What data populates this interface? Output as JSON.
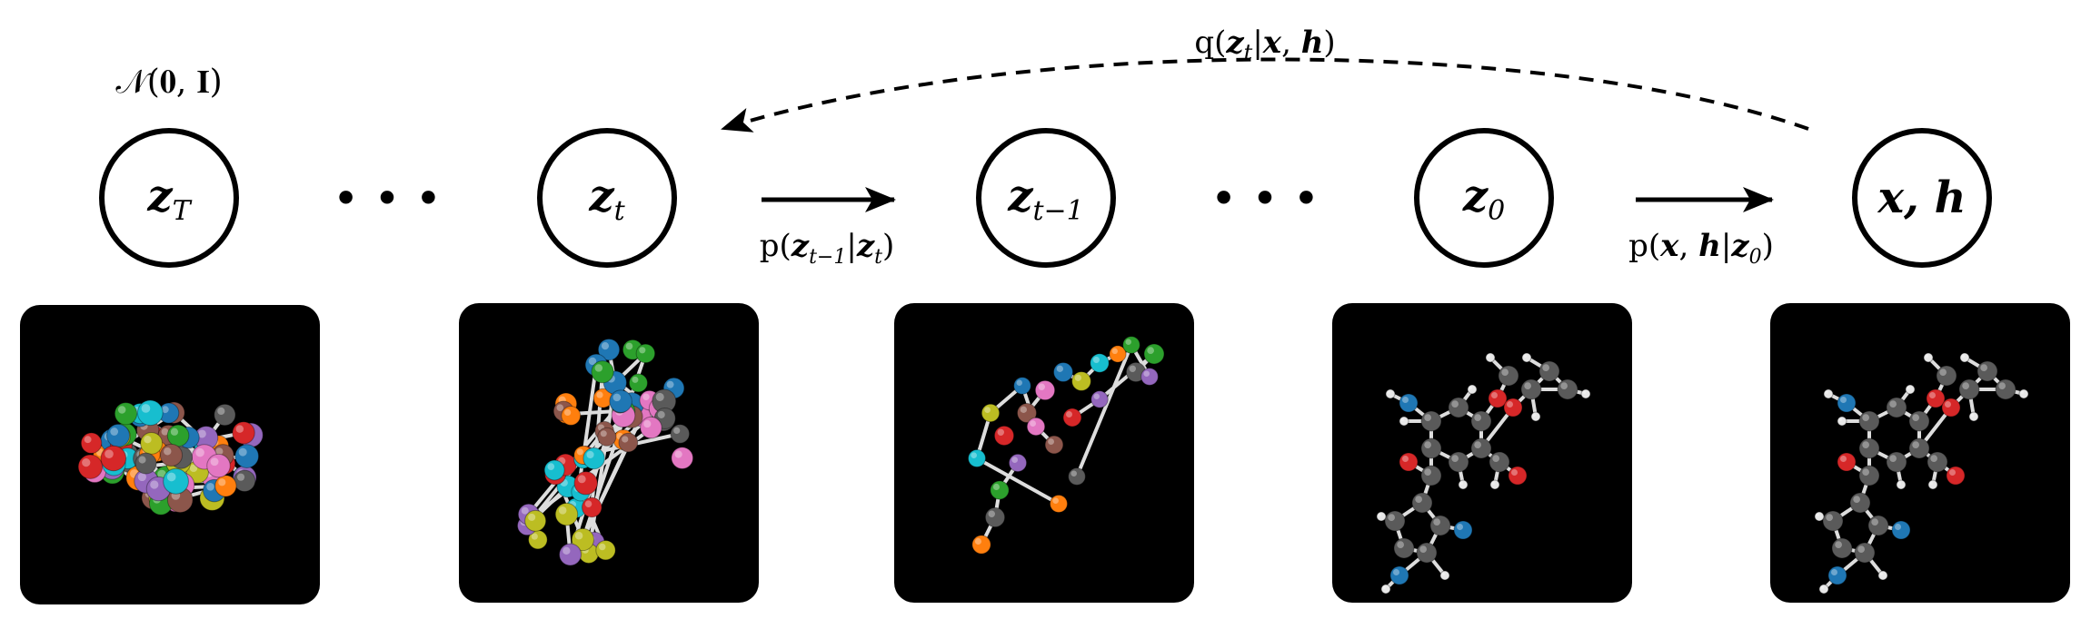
{
  "prior": {
    "label": "𝒩(𝟎, 𝐈)"
  },
  "nodes": [
    {
      "id": "zT",
      "main": "z",
      "sub": "T"
    },
    {
      "id": "zt",
      "main": "z",
      "sub": "t"
    },
    {
      "id": "zt1",
      "main": "z",
      "sub": "t−1"
    },
    {
      "id": "z0",
      "main": "z",
      "sub": "0"
    },
    {
      "id": "xh",
      "main": "x, h",
      "sub": ""
    }
  ],
  "ellipsis": [
    "• • •",
    "• • •"
  ],
  "edges": {
    "reverse_step": {
      "pre": "p(",
      "z1": "z",
      "s1": "t−1",
      "bar": "|",
      "z2": "z",
      "s2": "t",
      "post": ")"
    },
    "decode": {
      "pre": "p(",
      "x": "x",
      "comma": ", ",
      "h": "h",
      "bar": "|",
      "z": "z",
      "s": "0",
      "post": ")"
    },
    "forward": {
      "pre": "q(",
      "z": "z",
      "s": "t",
      "bar": "|",
      "x": "x",
      "comma": ", ",
      "h": "h",
      "post": ")"
    }
  },
  "colors": {
    "panel": "#000000",
    "carbon": "#5a5a5a",
    "oxygen": "#d62728",
    "nitrogen": "#1f77b4",
    "hydrogen": "#e8e8e8",
    "orange": "#ff7f0e",
    "purple": "#9467bd",
    "pink": "#e377c2",
    "cyan": "#17becf",
    "green": "#2ca02c",
    "brown": "#8c564b",
    "olive": "#bcbd22"
  }
}
